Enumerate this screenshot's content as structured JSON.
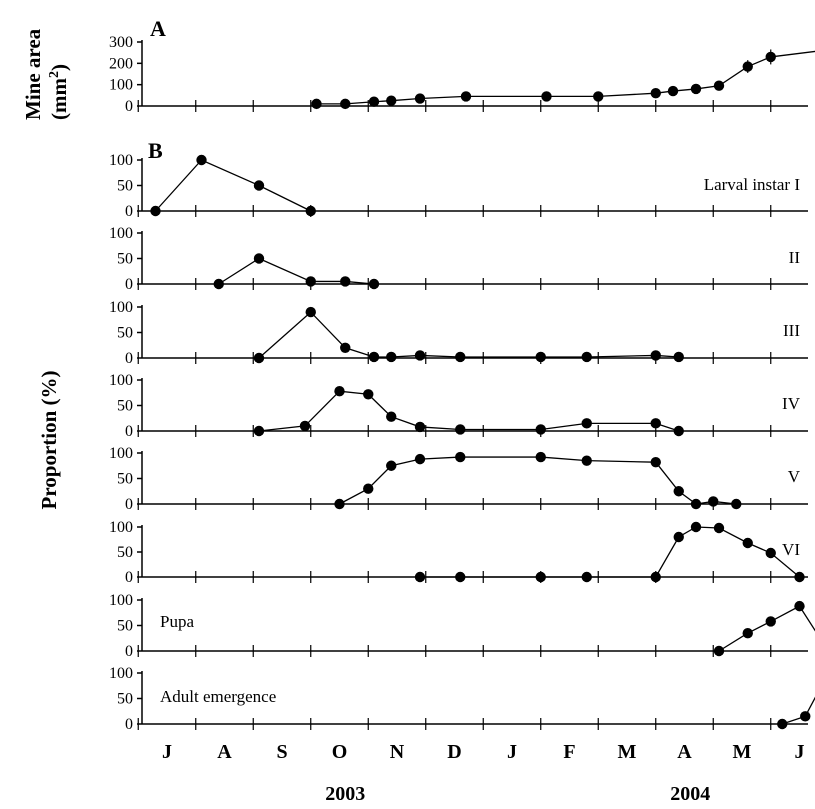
{
  "chart_data": [
    {
      "type": "line",
      "panel": "A",
      "ylabel": "Mine area (mm²)",
      "yticks": [
        0,
        100,
        200,
        300
      ],
      "ylim": [
        0,
        300
      ],
      "series": [
        {
          "x": [
            9.1,
            9.6,
            10.1,
            10.4,
            10.9,
            11.7,
            13.1,
            14.0,
            15.0,
            15.3,
            15.7,
            16.1,
            16.6,
            17.0,
            17.9,
            18.2
          ],
          "y": [
            10,
            10,
            20,
            25,
            35,
            45,
            45,
            45,
            60,
            70,
            80,
            95,
            185,
            230,
            260,
            270
          ],
          "err": [
            0,
            0,
            0,
            0,
            0,
            0,
            0,
            0,
            0,
            0,
            0,
            0,
            30,
            35,
            25,
            25
          ]
        }
      ]
    },
    {
      "type": "line",
      "panel": "B",
      "label": "Larval instar I",
      "yticks": [
        0,
        50,
        100
      ],
      "ylim": [
        0,
        100
      ],
      "series": [
        {
          "x": [
            6.3,
            7.1,
            8.1,
            9.0
          ],
          "y": [
            0,
            100,
            50,
            0
          ]
        }
      ]
    },
    {
      "type": "line",
      "label": "II",
      "yticks": [
        0,
        50,
        100
      ],
      "ylim": [
        0,
        100
      ],
      "series": [
        {
          "x": [
            7.4,
            8.1,
            9.0,
            9.6,
            10.1
          ],
          "y": [
            0,
            50,
            5,
            5,
            0
          ]
        }
      ]
    },
    {
      "type": "line",
      "label": "III",
      "yticks": [
        0,
        50,
        100
      ],
      "ylim": [
        0,
        100
      ],
      "series": [
        {
          "x": [
            8.1,
            9.0,
            9.6,
            10.1,
            10.4,
            10.9,
            11.6,
            13.0,
            13.8,
            15.0,
            15.4
          ],
          "y": [
            0,
            90,
            20,
            2,
            2,
            5,
            2,
            2,
            2,
            5,
            2
          ]
        }
      ]
    },
    {
      "type": "line",
      "label": "IV",
      "yticks": [
        0,
        50,
        100
      ],
      "ylim": [
        0,
        100
      ],
      "series": [
        {
          "x": [
            8.1,
            8.9,
            9.5,
            10.0,
            10.4,
            10.9,
            11.6,
            13.0,
            13.8,
            15.0,
            15.4
          ],
          "y": [
            0,
            10,
            78,
            72,
            28,
            8,
            3,
            3,
            15,
            15,
            0
          ]
        }
      ]
    },
    {
      "type": "line",
      "label": "V",
      "yticks": [
        0,
        50,
        100
      ],
      "ylim": [
        0,
        100
      ],
      "series": [
        {
          "x": [
            9.5,
            10.0,
            10.4,
            10.9,
            11.6,
            13.0,
            13.8,
            15.0,
            15.4,
            15.7,
            16.0,
            16.4
          ],
          "y": [
            0,
            30,
            75,
            88,
            92,
            92,
            85,
            82,
            25,
            0,
            5,
            0
          ]
        }
      ]
    },
    {
      "type": "line",
      "label": "VI",
      "yticks": [
        0,
        50,
        100
      ],
      "ylim": [
        0,
        100
      ],
      "series": [
        {
          "x": [
            10.9,
            11.6,
            13.0,
            13.8,
            15.0,
            15.4,
            15.7,
            16.1,
            16.6,
            17.0,
            17.5
          ],
          "y": [
            0,
            0,
            0,
            0,
            0,
            80,
            100,
            98,
            68,
            48,
            0
          ]
        }
      ]
    },
    {
      "type": "line",
      "label": "Pupa",
      "yticks": [
        0,
        50,
        100
      ],
      "ylim": [
        0,
        100
      ],
      "series": [
        {
          "x": [
            16.1,
            16.6,
            17.0,
            17.5,
            18.0
          ],
          "y": [
            0,
            35,
            58,
            88,
            0
          ]
        }
      ]
    },
    {
      "type": "line",
      "label": "Adult emergence",
      "yticks": [
        0,
        50,
        100
      ],
      "ylim": [
        0,
        100
      ],
      "series": [
        {
          "x": [
            17.2,
            17.6,
            18.0
          ],
          "y": [
            0,
            15,
            100
          ]
        }
      ]
    }
  ],
  "shared_x": {
    "months": [
      "J",
      "A",
      "S",
      "O",
      "N",
      "D",
      "J",
      "F",
      "M",
      "A",
      "M",
      "J"
    ],
    "years": [
      "2003",
      "2004"
    ],
    "xlim": [
      6,
      18
    ]
  },
  "side_label": "Proportion (%)"
}
